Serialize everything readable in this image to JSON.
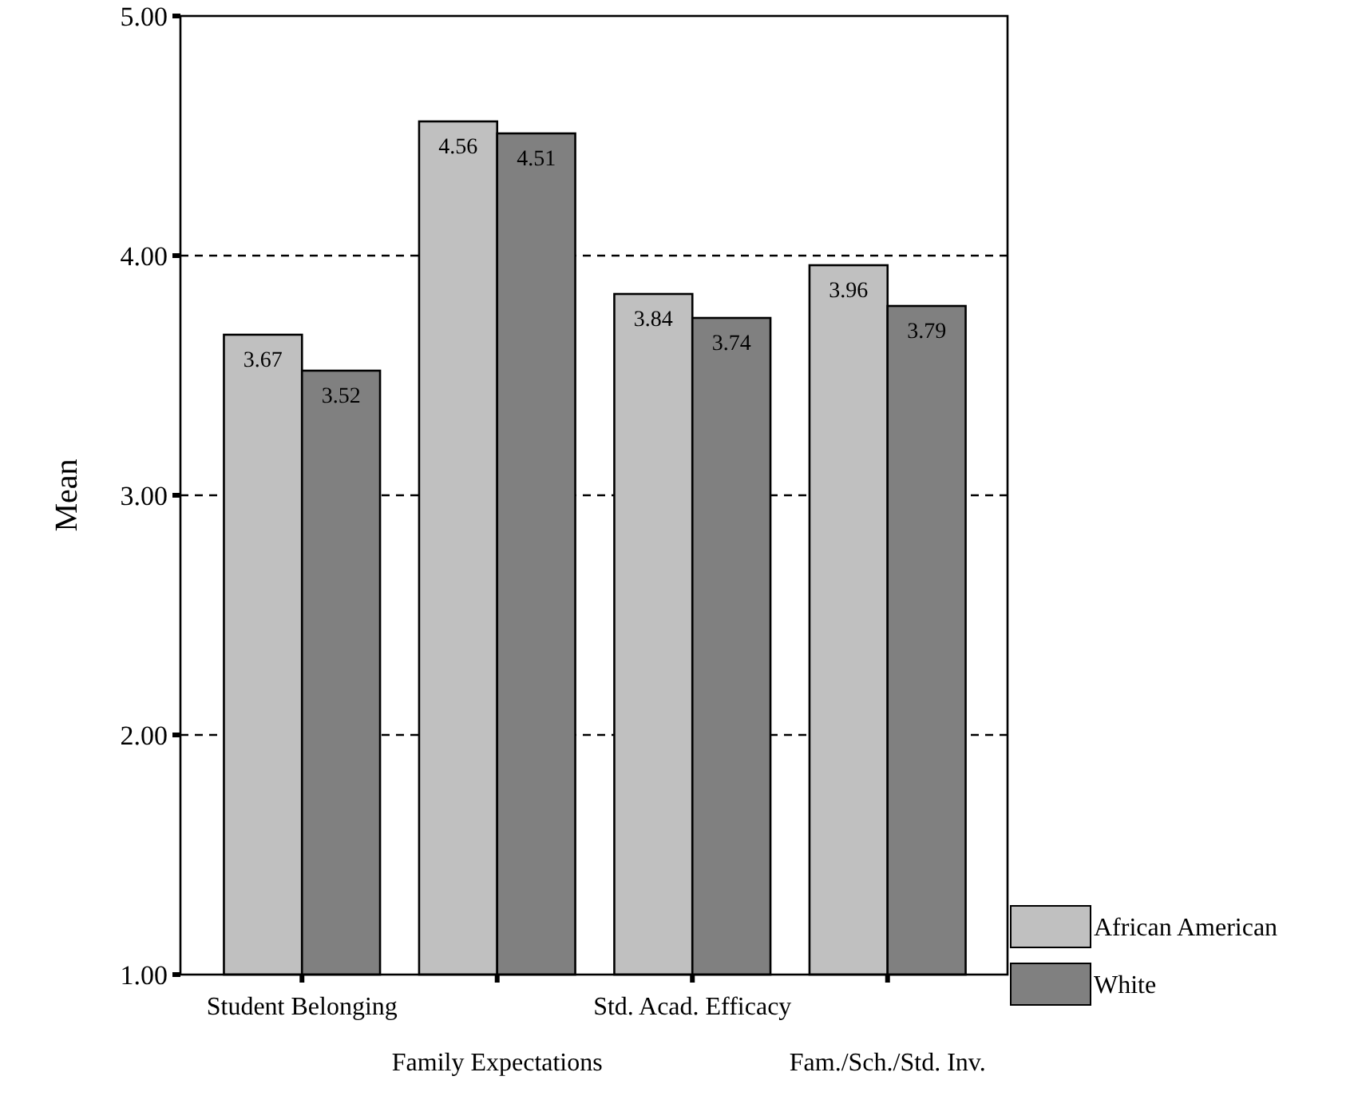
{
  "chart_data": {
    "type": "bar",
    "ylabel": "Mean",
    "categories": [
      "Student Belonging",
      "Family Expectations",
      "Std. Acad. Efficacy",
      "Fam./Sch./Std. Inv."
    ],
    "series": [
      {
        "name": "African American",
        "color": "#c0c0c0",
        "values": [
          3.67,
          4.56,
          3.84,
          3.96
        ]
      },
      {
        "name": "White",
        "color": "#808080",
        "values": [
          3.52,
          4.51,
          3.74,
          3.79
        ]
      }
    ],
    "ylim": [
      1,
      5
    ],
    "yticks": [
      {
        "value": 1,
        "label": "1.00"
      },
      {
        "value": 2,
        "label": "2.00"
      },
      {
        "value": 3,
        "label": "3.00"
      },
      {
        "value": 4,
        "label": "4.00"
      },
      {
        "value": 5,
        "label": "5.00"
      }
    ],
    "grid": "y",
    "legend": "bottom right",
    "data_labels": true
  }
}
